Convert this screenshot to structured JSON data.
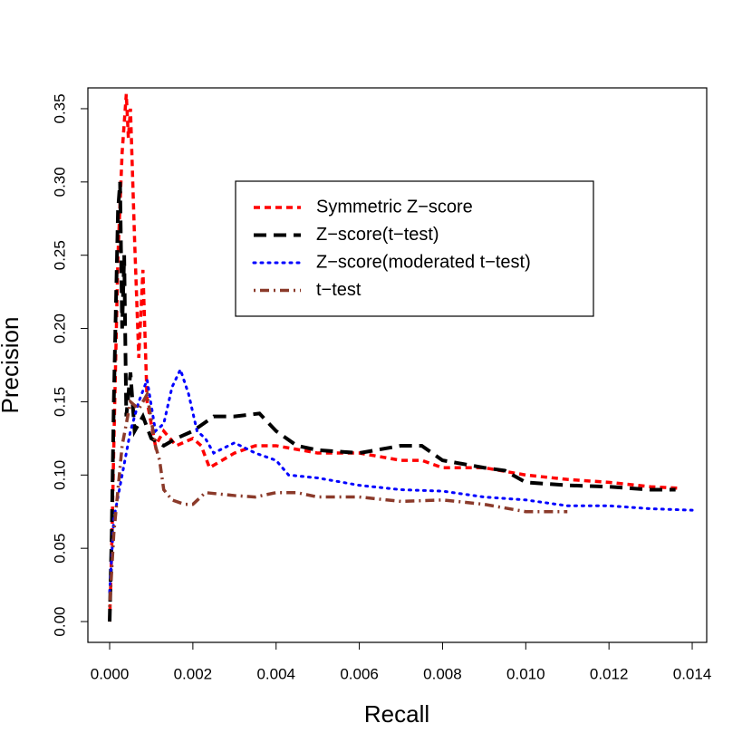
{
  "chart_data": {
    "type": "line",
    "x_label": "Recall",
    "y_label": "Precision",
    "xlim": [
      -0.000523,
      0.014348
    ],
    "ylim": [
      -0.0142,
      0.3642
    ],
    "xticks": [
      {
        "value": 0,
        "label": "0.000"
      },
      {
        "value": 0.002,
        "label": "0.002"
      },
      {
        "value": 0.004,
        "label": "0.004"
      },
      {
        "value": 0.006,
        "label": "0.006"
      },
      {
        "value": 0.008,
        "label": "0.008"
      },
      {
        "value": 0.01,
        "label": "0.010"
      },
      {
        "value": 0.012,
        "label": "0.012"
      },
      {
        "value": 0.014,
        "label": "0.014"
      }
    ],
    "yticks": [
      {
        "value": 0,
        "label": "0.00"
      },
      {
        "value": 0.05,
        "label": "0.05"
      },
      {
        "value": 0.1,
        "label": "0.10"
      },
      {
        "value": 0.15,
        "label": "0.15"
      },
      {
        "value": 0.2,
        "label": "0.20"
      },
      {
        "value": 0.25,
        "label": "0.25"
      },
      {
        "value": 0.3,
        "label": "0.30"
      },
      {
        "value": 0.35,
        "label": "0.35"
      }
    ],
    "legend_position": "upper-center",
    "series": [
      {
        "name": "Symmetric Z−score",
        "color": "#ff0000",
        "line_style": "dashed-short",
        "x": [
          0,
          5e-05,
          0.0001,
          0.0002,
          0.0003,
          0.0004,
          0.00045,
          0.0005,
          0.0006,
          0.0007,
          0.0008,
          0.0009,
          0.0011,
          0.0013,
          0.0016,
          0.002,
          0.0022,
          0.0024,
          0.003,
          0.0035,
          0.004,
          0.005,
          0.006,
          0.007,
          0.0075,
          0.008,
          0.009,
          0.01,
          0.011,
          0.012,
          0.013,
          0.0137
        ],
        "values": [
          0,
          0.05,
          0.12,
          0.25,
          0.32,
          0.36,
          0.33,
          0.35,
          0.26,
          0.18,
          0.24,
          0.15,
          0.12,
          0.13,
          0.12,
          0.125,
          0.12,
          0.105,
          0.115,
          0.12,
          0.12,
          0.115,
          0.115,
          0.11,
          0.11,
          0.105,
          0.105,
          0.1,
          0.097,
          0.095,
          0.092,
          0.091
        ]
      },
      {
        "name": "Z−score(t−test)",
        "color": "#000000",
        "line_style": "dashed-long",
        "x": [
          0,
          5e-05,
          0.0001,
          0.0002,
          0.00025,
          0.0003,
          0.00035,
          0.0004,
          0.0005,
          0.0006,
          0.0008,
          0.001,
          0.0013,
          0.0016,
          0.002,
          0.0025,
          0.003,
          0.0036,
          0.004,
          0.0045,
          0.005,
          0.006,
          0.007,
          0.0075,
          0.008,
          0.009,
          0.0095,
          0.01,
          0.011,
          0.012,
          0.013,
          0.0136
        ],
        "values": [
          0,
          0.06,
          0.15,
          0.28,
          0.3,
          0.2,
          0.25,
          0.14,
          0.17,
          0.13,
          0.14,
          0.125,
          0.12,
          0.125,
          0.13,
          0.14,
          0.14,
          0.142,
          0.13,
          0.12,
          0.117,
          0.115,
          0.12,
          0.12,
          0.11,
          0.105,
          0.103,
          0.095,
          0.093,
          0.092,
          0.09,
          0.09
        ]
      },
      {
        "name": "Z−score(moderated t−test)",
        "color": "#0000ff",
        "line_style": "dotted",
        "x": [
          0,
          0.0001,
          0.0003,
          0.0005,
          0.0007,
          0.0009,
          0.0011,
          0.0013,
          0.0015,
          0.0017,
          0.0019,
          0.0021,
          0.0023,
          0.0025,
          0.003,
          0.0035,
          0.004,
          0.0043,
          0.005,
          0.006,
          0.007,
          0.008,
          0.009,
          0.01,
          0.011,
          0.012,
          0.013,
          0.014
        ],
        "values": [
          0.02,
          0.07,
          0.1,
          0.13,
          0.15,
          0.165,
          0.13,
          0.135,
          0.16,
          0.172,
          0.155,
          0.13,
          0.125,
          0.115,
          0.122,
          0.115,
          0.11,
          0.1,
          0.098,
          0.093,
          0.09,
          0.089,
          0.085,
          0.083,
          0.079,
          0.079,
          0.077,
          0.076
        ]
      },
      {
        "name": "t−test",
        "color": "#8b3a2a",
        "line_style": "dot-dash",
        "x": [
          0,
          0.0001,
          0.0003,
          0.0005,
          0.0007,
          0.0009,
          0.0011,
          0.0012,
          0.0013,
          0.0015,
          0.0018,
          0.002,
          0.0023,
          0.003,
          0.0035,
          0.004,
          0.0045,
          0.005,
          0.006,
          0.007,
          0.008,
          0.009,
          0.01,
          0.011
        ],
        "values": [
          0.01,
          0.06,
          0.12,
          0.15,
          0.145,
          0.155,
          0.12,
          0.11,
          0.09,
          0.083,
          0.08,
          0.08,
          0.088,
          0.086,
          0.085,
          0.088,
          0.088,
          0.085,
          0.085,
          0.082,
          0.083,
          0.08,
          0.075,
          0.075
        ]
      }
    ]
  }
}
